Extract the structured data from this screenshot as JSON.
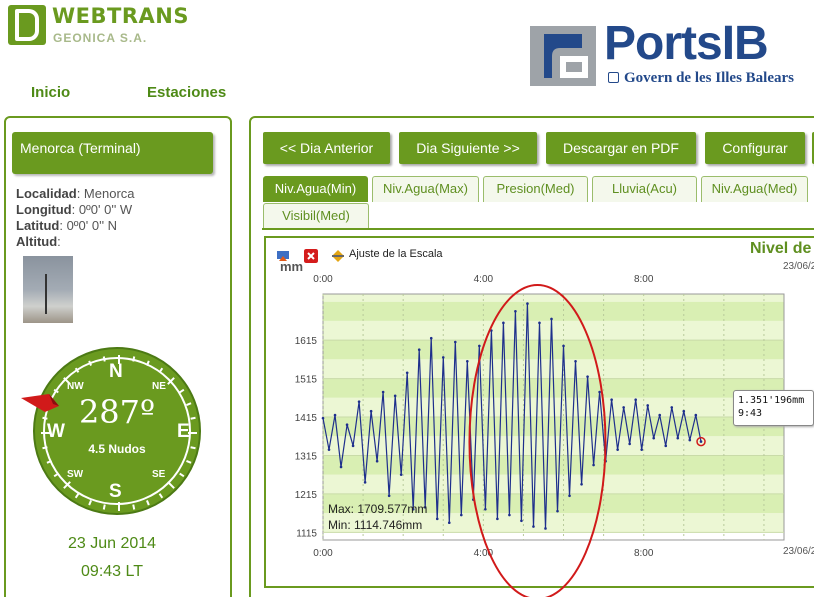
{
  "header": {
    "brand": "WEBTRANS",
    "brand_sub": "GEONICA S.A.",
    "partner": "PortsIB",
    "partner_sub": "Govern de les Illes Balears"
  },
  "nav": {
    "items": [
      {
        "label": "Inicio"
      },
      {
        "label": "Estaciones"
      }
    ]
  },
  "station": {
    "name": "Menorca (Terminal)",
    "localidad_label": "Localidad",
    "localidad": "Menorca",
    "longitud_label": "Longitud",
    "longitud": "0º0' 0'' W",
    "latitud_label": "Latitud",
    "latitud": "0º0' 0'' N",
    "altitud_label": "Altitud",
    "altitud": ""
  },
  "wind": {
    "direction": "287º",
    "direction_value": 287,
    "speed": "4.5 Nudos",
    "cardinals": {
      "n": "N",
      "ne": "NE",
      "e": "E",
      "se": "SE",
      "s": "S",
      "sw": "SW",
      "w": "W",
      "nw": "NW"
    }
  },
  "datetime": {
    "date": "23 Jun 2014",
    "time": "09:43 LT"
  },
  "toolbar_buttons": [
    {
      "label": "<< Dia Anterior"
    },
    {
      "label": "Dia Siguiente >>"
    },
    {
      "label": "Descargar en PDF"
    },
    {
      "label": "Configurar"
    }
  ],
  "tabs": [
    {
      "label": "Niv.Agua(Min)",
      "active": true
    },
    {
      "label": "Niv.Agua(Max)"
    },
    {
      "label": "Presion(Med)"
    },
    {
      "label": "Lluvia(Acu)"
    },
    {
      "label": "Niv.Agua(Med)"
    },
    {
      "label": "Visibil(Med)"
    }
  ],
  "chart_toolbar": {
    "scale_label": "Ajuste de la Escala"
  },
  "chart_data": {
    "type": "line",
    "title": "Nivel de",
    "date_label": "23/06/2",
    "unit": "mm",
    "x_ticks": [
      "0:00",
      "4:00",
      "8:00"
    ],
    "y_ticks": [
      1115,
      1215,
      1315,
      1415,
      1515,
      1615
    ],
    "ylim": [
      1095,
      1735
    ],
    "x_range_hours": [
      0,
      11.5
    ],
    "max_label": "Max: 1709.577mm",
    "min_label": "Min: 1114.746mm",
    "tooltip_value": "1.351'196mm",
    "tooltip_time": "9:43",
    "grid": true,
    "series": [
      {
        "color": "#1e2f8c",
        "x_hours": [
          0.0,
          0.15,
          0.3,
          0.45,
          0.6,
          0.75,
          0.9,
          1.05,
          1.2,
          1.35,
          1.5,
          1.65,
          1.8,
          1.95,
          2.1,
          2.25,
          2.4,
          2.55,
          2.7,
          2.85,
          3.0,
          3.15,
          3.3,
          3.45,
          3.6,
          3.75,
          3.9,
          4.05,
          4.2,
          4.35,
          4.5,
          4.65,
          4.8,
          4.95,
          5.1,
          5.25,
          5.4,
          5.55,
          5.7,
          5.85,
          6.0,
          6.15,
          6.3,
          6.45,
          6.6,
          6.75,
          6.9,
          7.05,
          7.2,
          7.35,
          7.5,
          7.65,
          7.8,
          7.95,
          8.1,
          8.25,
          8.4,
          8.55,
          8.7,
          8.85,
          9.0,
          9.15,
          9.3,
          9.43
        ],
        "values": [
          1412,
          1330,
          1420,
          1285,
          1395,
          1340,
          1455,
          1245,
          1430,
          1300,
          1480,
          1210,
          1470,
          1265,
          1530,
          1175,
          1590,
          1180,
          1620,
          1150,
          1570,
          1140,
          1610,
          1160,
          1560,
          1200,
          1600,
          1175,
          1640,
          1150,
          1660,
          1160,
          1690,
          1145,
          1710,
          1130,
          1660,
          1125,
          1670,
          1170,
          1600,
          1210,
          1560,
          1240,
          1520,
          1290,
          1480,
          1300,
          1460,
          1330,
          1440,
          1345,
          1460,
          1330,
          1445,
          1360,
          1420,
          1340,
          1440,
          1360,
          1430,
          1355,
          1420,
          1351
        ]
      }
    ]
  }
}
